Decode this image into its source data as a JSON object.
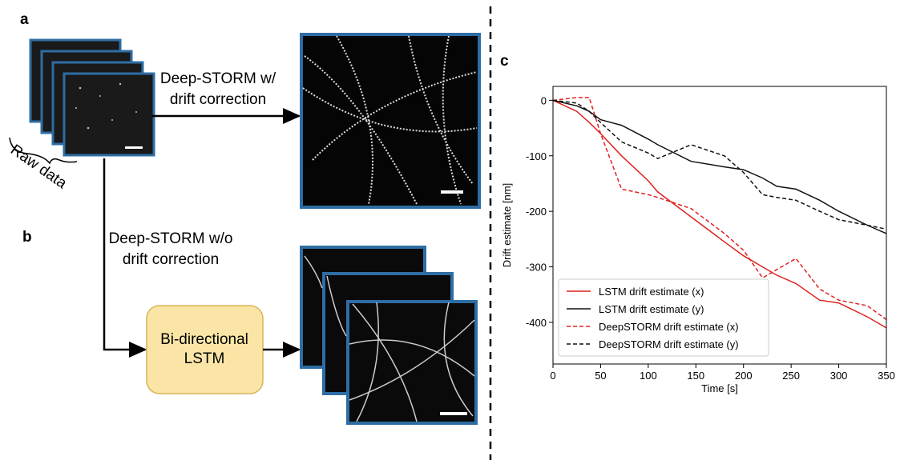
{
  "panels": {
    "a": {
      "label": "a",
      "arrow_text": [
        "Deep-STORM w/",
        "drift correction"
      ],
      "input_text": "Raw data"
    },
    "b": {
      "label": "b",
      "arrow_text": [
        "Deep-STORM w/o",
        "drift correction"
      ],
      "box_text": [
        "Bi-directional",
        "LSTM"
      ]
    },
    "c": {
      "label": "c"
    }
  },
  "chart_data": {
    "type": "line",
    "x_label": "Time [s]",
    "y_label": "Drift estimate [nm]",
    "x": [
      0,
      25,
      38,
      50,
      72,
      100,
      110,
      145,
      180,
      200,
      220,
      235,
      255,
      280,
      300,
      330,
      350
    ],
    "series": [
      {
        "name": "LSTM drift estimate (x)",
        "color": "#e02020",
        "dashed": false,
        "values": [
          0,
          -20,
          -40,
          -60,
          -100,
          -145,
          -165,
          -210,
          -255,
          -280,
          -300,
          -315,
          -330,
          -360,
          -365,
          -390,
          -410
        ]
      },
      {
        "name": "LSTM drift estimate (y)",
        "color": "#111111",
        "dashed": false,
        "values": [
          0,
          -10,
          -20,
          -35,
          -45,
          -70,
          -80,
          -110,
          -120,
          -125,
          -140,
          -155,
          -160,
          -180,
          -200,
          -225,
          -240
        ]
      },
      {
        "name": "DeepSTORM drift estimate (x)",
        "color": "#e02020",
        "dashed": true,
        "values": [
          0,
          5,
          5,
          -60,
          -160,
          -170,
          -175,
          -195,
          -240,
          -270,
          -320,
          -305,
          -285,
          -340,
          -360,
          -370,
          -395
        ]
      },
      {
        "name": "DeepSTORM drift estimate (y)",
        "color": "#111111",
        "dashed": true,
        "values": [
          0,
          -5,
          -20,
          -40,
          -75,
          -95,
          -105,
          -80,
          -100,
          -130,
          -170,
          -175,
          -180,
          -200,
          -215,
          -225,
          -232
        ]
      }
    ],
    "xlim": [
      0,
      350
    ],
    "ylim": [
      -475,
      25
    ],
    "xticks": [
      0,
      50,
      100,
      150,
      200,
      250,
      300,
      350
    ],
    "yticks": [
      0,
      -100,
      -200,
      -300,
      -400
    ],
    "legend": "lower left"
  }
}
